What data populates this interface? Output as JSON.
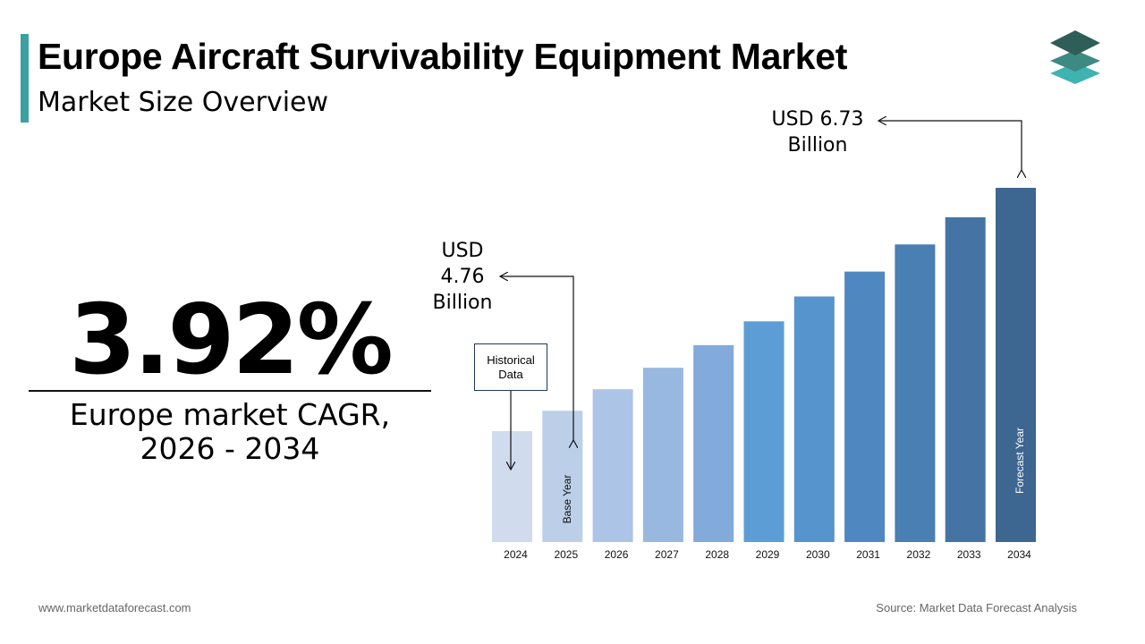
{
  "header": {
    "title": "Europe Aircraft Survivability Equipment Market",
    "subtitle": "Market Size Overview"
  },
  "kpi": {
    "value": "3.92%",
    "label_line1": "Europe market CAGR,",
    "label_line2": "2026 - 2034"
  },
  "annotations": {
    "base_value": [
      "USD",
      "4.76",
      "Billion"
    ],
    "forecast_value": [
      "USD 6.73",
      "Billion"
    ],
    "historical_label": [
      "Historical",
      "Data"
    ],
    "base_year_label": "Base Year",
    "forecast_year_label": "Forecast Year"
  },
  "footer": {
    "website": "www.marketdataforecast.com",
    "source": "Source: Market Data Forecast Analysis"
  },
  "colors": {
    "accent": "#3aa0a0",
    "bars": [
      "#d0dcee",
      "#bccfe8",
      "#acc4e6",
      "#99b8e0",
      "#82aadb",
      "#5d9dd6",
      "#5594cc",
      "#4f88c0",
      "#4a7fb3",
      "#4574a4",
      "#3d6690"
    ]
  },
  "chart_data": {
    "type": "bar",
    "categories": [
      "2024",
      "2025",
      "2026",
      "2027",
      "2028",
      "2029",
      "2030",
      "2031",
      "2032",
      "2033",
      "2034"
    ],
    "values": [
      4.58,
      4.76,
      4.95,
      5.14,
      5.34,
      5.55,
      5.77,
      5.99,
      6.23,
      6.47,
      6.73
    ],
    "ylim": [
      3.6,
      6.9
    ],
    "title": "",
    "xlabel": "",
    "ylabel": ""
  }
}
